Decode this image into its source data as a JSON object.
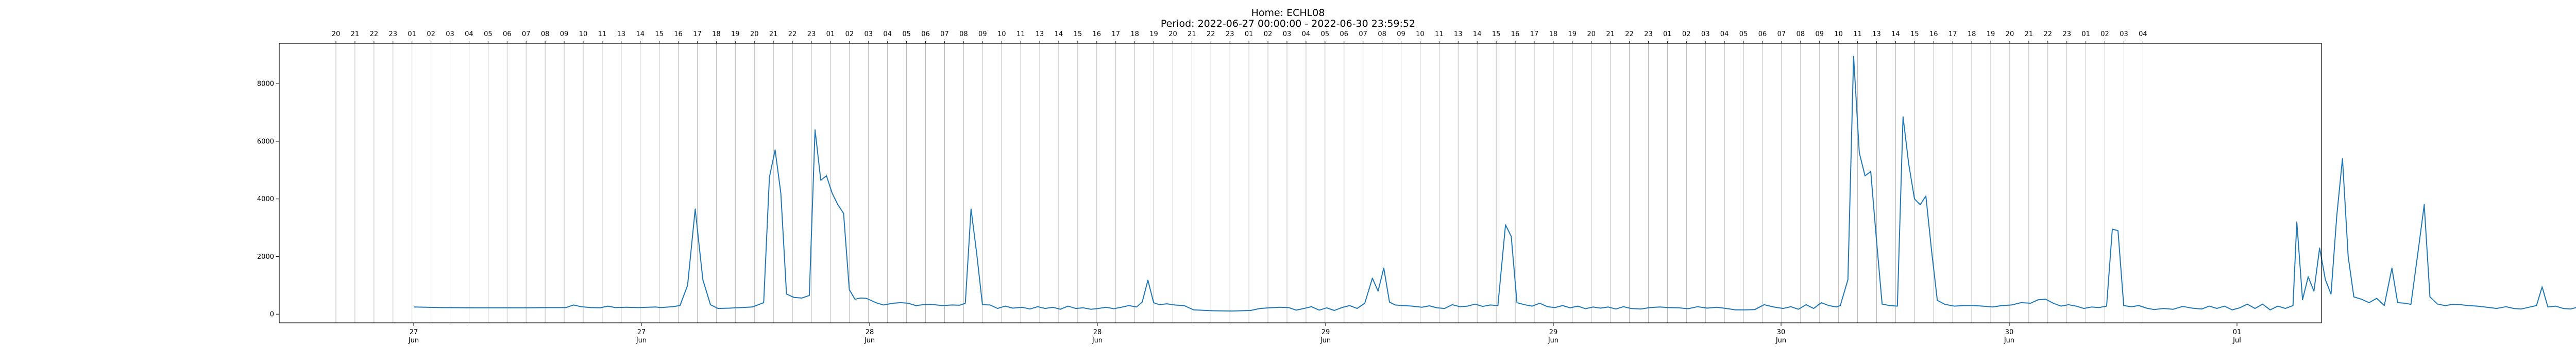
{
  "chart_data": {
    "type": "line",
    "title": "Home: ECHL08",
    "subtitle": "Period: 2022-06-27 00:00:00 - 2022-06-30 23:59:52",
    "xlabel": "",
    "ylabel": "",
    "ylim": [
      -300,
      9400
    ],
    "grid": {
      "x": true,
      "y": false
    },
    "top_hour_labels": [
      "20",
      "21",
      "22",
      "23",
      "01",
      "02",
      "03",
      "04",
      "05",
      "06",
      "07",
      "08",
      "09",
      "10",
      "11",
      "13",
      "14",
      "15",
      "16",
      "17",
      "18",
      "19",
      "20",
      "21",
      "22",
      "23",
      "01",
      "02",
      "03",
      "04",
      "05",
      "06",
      "07",
      "08",
      "09",
      "10",
      "11",
      "13",
      "14",
      "15",
      "16",
      "17",
      "18",
      "19",
      "20",
      "21",
      "22",
      "23",
      "01",
      "02",
      "03",
      "04",
      "05",
      "06",
      "07",
      "08",
      "09",
      "10",
      "11",
      "13",
      "14",
      "15",
      "16",
      "17",
      "18",
      "19",
      "20",
      "21",
      "22",
      "23",
      "01",
      "02",
      "03",
      "04",
      "05",
      "06",
      "07",
      "08",
      "09",
      "10",
      "11",
      "13",
      "14",
      "15",
      "16",
      "17",
      "18",
      "19",
      "20",
      "21",
      "22",
      "23",
      "01",
      "02",
      "03",
      "04"
    ],
    "bottom_ticks": [
      {
        "day": "27",
        "month": "Jun"
      },
      {
        "day": "27",
        "month": "Jun"
      },
      {
        "day": "28",
        "month": "Jun"
      },
      {
        "day": "28",
        "month": "Jun"
      },
      {
        "day": "29",
        "month": "Jun"
      },
      {
        "day": "29",
        "month": "Jun"
      },
      {
        "day": "30",
        "month": "Jun"
      },
      {
        "day": "30",
        "month": "Jun"
      },
      {
        "day": "01",
        "month": "Jul"
      }
    ],
    "y_ticks": [
      "0",
      "2000",
      "4000",
      "6000",
      "8000"
    ],
    "series": [
      {
        "color": "#1f77b4",
        "points": [
          [
            0.0,
            250
          ],
          [
            1.5,
            230
          ],
          [
            3.0,
            220
          ],
          [
            4.5,
            220
          ],
          [
            6.0,
            220
          ],
          [
            7.0,
            230
          ],
          [
            8.0,
            230
          ],
          [
            8.4,
            320
          ],
          [
            8.8,
            260
          ],
          [
            9.3,
            230
          ],
          [
            9.8,
            220
          ],
          [
            10.2,
            280
          ],
          [
            10.6,
            230
          ],
          [
            11.2,
            240
          ],
          [
            11.8,
            230
          ],
          [
            12.3,
            240
          ],
          [
            12.7,
            250
          ],
          [
            13.0,
            230
          ],
          [
            13.6,
            260
          ],
          [
            14.0,
            300
          ],
          [
            14.4,
            1000
          ],
          [
            14.8,
            3650
          ],
          [
            15.2,
            1200
          ],
          [
            15.6,
            330
          ],
          [
            16.0,
            200
          ],
          [
            16.6,
            210
          ],
          [
            17.2,
            230
          ],
          [
            17.8,
            250
          ],
          [
            18.4,
            400
          ],
          [
            18.7,
            4750
          ],
          [
            19.0,
            5700
          ],
          [
            19.3,
            4200
          ],
          [
            19.6,
            700
          ],
          [
            20.0,
            580
          ],
          [
            20.4,
            560
          ],
          [
            20.8,
            650
          ],
          [
            21.1,
            6400
          ],
          [
            21.4,
            4650
          ],
          [
            21.7,
            4800
          ],
          [
            22.0,
            4200
          ],
          [
            22.3,
            3800
          ],
          [
            22.6,
            3500
          ],
          [
            22.9,
            850
          ],
          [
            23.2,
            520
          ],
          [
            23.5,
            560
          ],
          [
            23.8,
            550
          ],
          [
            24.3,
            400
          ],
          [
            24.7,
            320
          ],
          [
            25.2,
            380
          ],
          [
            25.6,
            400
          ],
          [
            26.0,
            380
          ],
          [
            26.4,
            300
          ],
          [
            26.8,
            330
          ],
          [
            27.2,
            340
          ],
          [
            27.8,
            300
          ],
          [
            28.3,
            320
          ],
          [
            28.7,
            310
          ],
          [
            29.0,
            380
          ],
          [
            29.3,
            3650
          ],
          [
            29.6,
            2100
          ],
          [
            29.9,
            330
          ],
          [
            30.3,
            320
          ],
          [
            30.7,
            200
          ],
          [
            31.1,
            280
          ],
          [
            31.5,
            210
          ],
          [
            32.0,
            240
          ],
          [
            32.4,
            180
          ],
          [
            32.8,
            260
          ],
          [
            33.2,
            200
          ],
          [
            33.6,
            240
          ],
          [
            34.0,
            170
          ],
          [
            34.4,
            280
          ],
          [
            34.8,
            200
          ],
          [
            35.2,
            220
          ],
          [
            35.6,
            170
          ],
          [
            36.0,
            200
          ],
          [
            36.4,
            240
          ],
          [
            36.8,
            190
          ],
          [
            37.2,
            240
          ],
          [
            37.6,
            300
          ],
          [
            38.0,
            250
          ],
          [
            38.3,
            420
          ],
          [
            38.6,
            1180
          ],
          [
            38.9,
            400
          ],
          [
            39.2,
            330
          ],
          [
            39.6,
            360
          ],
          [
            40.0,
            320
          ],
          [
            40.5,
            300
          ],
          [
            41.0,
            150
          ],
          [
            42.0,
            120
          ],
          [
            43.0,
            110
          ],
          [
            44.0,
            130
          ],
          [
            44.5,
            200
          ],
          [
            45.0,
            220
          ],
          [
            45.5,
            240
          ],
          [
            46.0,
            230
          ],
          [
            46.4,
            140
          ],
          [
            46.8,
            200
          ],
          [
            47.2,
            260
          ],
          [
            47.6,
            140
          ],
          [
            48.0,
            220
          ],
          [
            48.4,
            130
          ],
          [
            48.8,
            230
          ],
          [
            49.2,
            300
          ],
          [
            49.6,
            200
          ],
          [
            50.0,
            380
          ],
          [
            50.4,
            1250
          ],
          [
            50.7,
            800
          ],
          [
            51.0,
            1600
          ],
          [
            51.3,
            420
          ],
          [
            51.6,
            320
          ],
          [
            52.0,
            300
          ],
          [
            52.5,
            280
          ],
          [
            53.0,
            240
          ],
          [
            53.4,
            290
          ],
          [
            53.8,
            220
          ],
          [
            54.2,
            200
          ],
          [
            54.6,
            330
          ],
          [
            55.0,
            260
          ],
          [
            55.4,
            280
          ],
          [
            55.8,
            350
          ],
          [
            56.2,
            270
          ],
          [
            56.6,
            320
          ],
          [
            57.0,
            300
          ],
          [
            57.4,
            3100
          ],
          [
            57.7,
            2700
          ],
          [
            58.0,
            400
          ],
          [
            58.4,
            330
          ],
          [
            58.8,
            280
          ],
          [
            59.2,
            380
          ],
          [
            59.6,
            260
          ],
          [
            60.0,
            230
          ],
          [
            60.4,
            300
          ],
          [
            60.8,
            220
          ],
          [
            61.2,
            280
          ],
          [
            61.6,
            190
          ],
          [
            62.0,
            250
          ],
          [
            62.4,
            210
          ],
          [
            62.8,
            250
          ],
          [
            63.2,
            180
          ],
          [
            63.6,
            260
          ],
          [
            64.0,
            200
          ],
          [
            64.5,
            180
          ],
          [
            65.0,
            230
          ],
          [
            65.5,
            250
          ],
          [
            66.0,
            230
          ],
          [
            66.5,
            220
          ],
          [
            67.0,
            190
          ],
          [
            67.5,
            260
          ],
          [
            68.0,
            210
          ],
          [
            68.5,
            240
          ],
          [
            69.0,
            200
          ],
          [
            69.5,
            150
          ],
          [
            70.0,
            150
          ],
          [
            70.5,
            160
          ],
          [
            71.0,
            330
          ],
          [
            71.5,
            250
          ],
          [
            72.0,
            200
          ],
          [
            72.4,
            260
          ],
          [
            72.8,
            170
          ],
          [
            73.2,
            330
          ],
          [
            73.6,
            200
          ],
          [
            74.0,
            400
          ],
          [
            74.4,
            300
          ],
          [
            74.8,
            250
          ],
          [
            75.0,
            300
          ],
          [
            75.4,
            1200
          ],
          [
            75.7,
            8950
          ],
          [
            76.0,
            5600
          ],
          [
            76.3,
            4800
          ],
          [
            76.6,
            4950
          ],
          [
            76.9,
            2600
          ],
          [
            77.2,
            350
          ],
          [
            77.6,
            300
          ],
          [
            78.0,
            280
          ],
          [
            78.3,
            6850
          ],
          [
            78.6,
            5200
          ],
          [
            78.9,
            4000
          ],
          [
            79.2,
            3800
          ],
          [
            79.5,
            4100
          ],
          [
            79.8,
            2200
          ],
          [
            80.1,
            480
          ],
          [
            80.5,
            340
          ],
          [
            81.0,
            280
          ],
          [
            81.5,
            300
          ],
          [
            82.0,
            300
          ],
          [
            82.5,
            280
          ],
          [
            83.0,
            250
          ],
          [
            83.5,
            300
          ],
          [
            84.0,
            320
          ],
          [
            84.5,
            400
          ],
          [
            85.0,
            380
          ],
          [
            85.4,
            500
          ],
          [
            85.8,
            520
          ],
          [
            86.2,
            380
          ],
          [
            86.6,
            280
          ],
          [
            87.0,
            330
          ],
          [
            87.4,
            280
          ],
          [
            87.8,
            200
          ],
          [
            88.2,
            250
          ],
          [
            88.6,
            230
          ],
          [
            89.0,
            280
          ],
          [
            89.3,
            2950
          ],
          [
            89.6,
            2900
          ],
          [
            89.9,
            300
          ],
          [
            90.3,
            260
          ],
          [
            90.7,
            300
          ],
          [
            91.1,
            210
          ],
          [
            91.5,
            160
          ],
          [
            92.0,
            200
          ],
          [
            92.5,
            170
          ],
          [
            93.0,
            270
          ],
          [
            93.5,
            210
          ],
          [
            94.0,
            180
          ],
          [
            94.4,
            280
          ],
          [
            94.8,
            200
          ],
          [
            95.2,
            280
          ],
          [
            95.6,
            150
          ],
          [
            96.0,
            220
          ],
          [
            96.4,
            350
          ],
          [
            96.8,
            200
          ],
          [
            97.2,
            350
          ],
          [
            97.6,
            150
          ],
          [
            98.0,
            280
          ],
          [
            98.4,
            200
          ],
          [
            98.8,
            300
          ],
          [
            99.0,
            3200
          ],
          [
            99.3,
            500
          ],
          [
            99.6,
            1300
          ],
          [
            99.9,
            800
          ],
          [
            100.2,
            2300
          ],
          [
            100.5,
            1200
          ],
          [
            100.8,
            700
          ],
          [
            101.1,
            3400
          ],
          [
            101.4,
            5400
          ],
          [
            101.7,
            2000
          ],
          [
            102.0,
            600
          ],
          [
            102.4,
            520
          ],
          [
            102.8,
            400
          ],
          [
            103.2,
            550
          ],
          [
            103.6,
            300
          ],
          [
            104.0,
            1600
          ],
          [
            104.3,
            400
          ],
          [
            104.7,
            380
          ],
          [
            105.0,
            340
          ],
          [
            105.4,
            2300
          ],
          [
            105.7,
            3800
          ],
          [
            106.0,
            600
          ],
          [
            106.4,
            350
          ],
          [
            106.8,
            300
          ],
          [
            107.2,
            340
          ],
          [
            107.6,
            330
          ],
          [
            108.0,
            300
          ],
          [
            108.5,
            280
          ],
          [
            109.0,
            240
          ],
          [
            109.5,
            200
          ],
          [
            110.0,
            260
          ],
          [
            110.4,
            200
          ],
          [
            110.8,
            180
          ],
          [
            111.2,
            240
          ],
          [
            111.6,
            300
          ],
          [
            111.9,
            950
          ],
          [
            112.2,
            250
          ],
          [
            112.6,
            280
          ],
          [
            113.0,
            200
          ],
          [
            113.4,
            180
          ],
          [
            113.8,
            250
          ],
          [
            114.2,
            160
          ],
          [
            114.6,
            280
          ],
          [
            115.0,
            200
          ],
          [
            115.4,
            150
          ],
          [
            115.8,
            240
          ],
          [
            116.2,
            190
          ],
          [
            116.6,
            280
          ],
          [
            117.0,
            250
          ],
          [
            117.5,
            200
          ],
          [
            118.0,
            180
          ],
          [
            118.3,
            190
          ]
        ]
      }
    ]
  }
}
